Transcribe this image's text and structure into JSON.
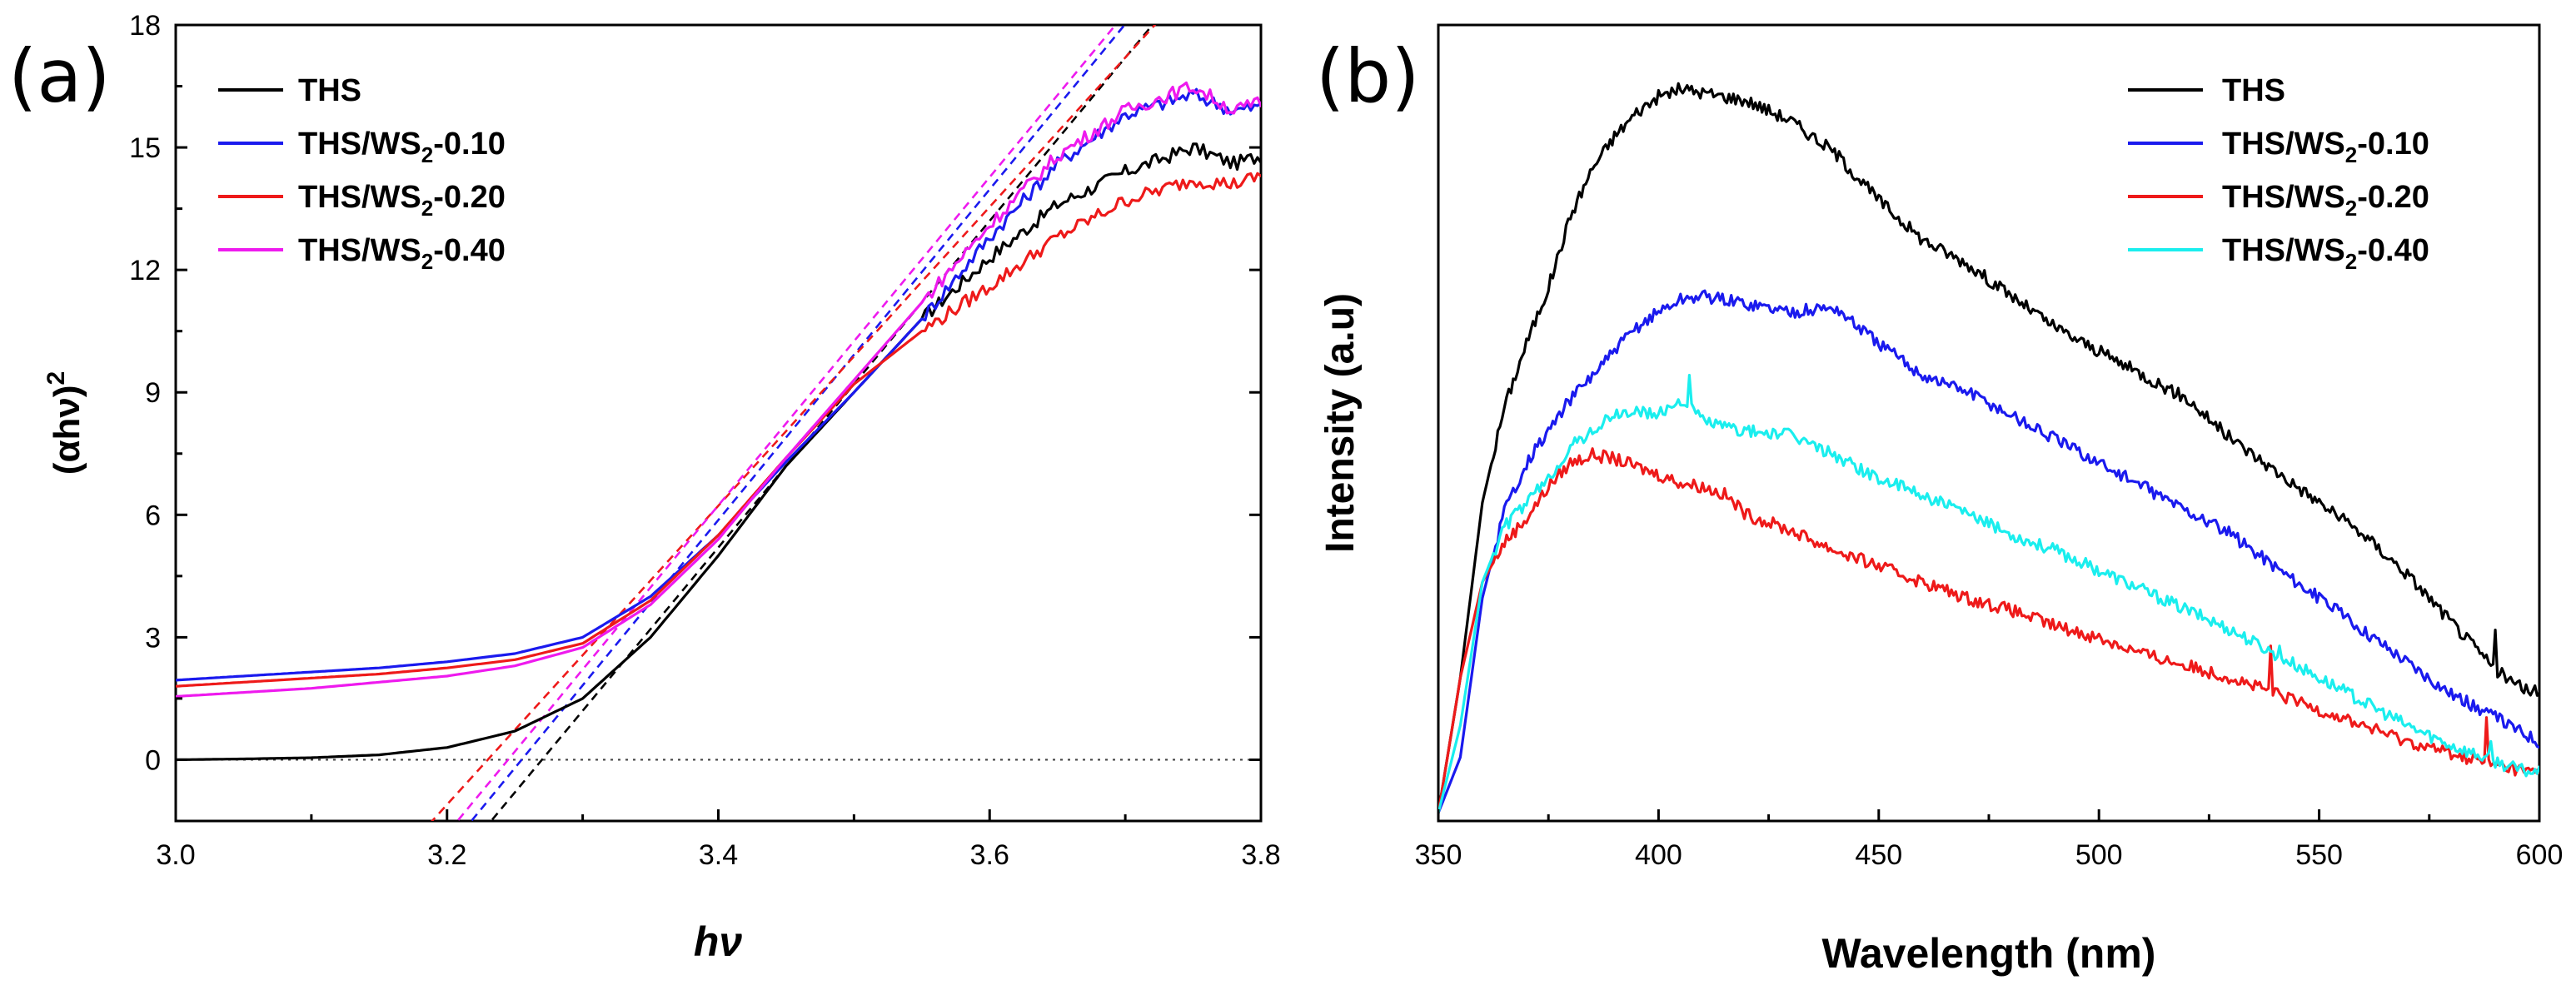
{
  "colors": {
    "THS": "#000000",
    "THS/WS2-0.10": "#1a1aee",
    "THS/WS2-0.20": "#ee1a1a",
    "THS/WS2-0.40_a": "#ee1aee",
    "THS/WS2-0.40_b": "#1aeeee"
  },
  "chart_data": [
    {
      "type": "line",
      "panel_label": "(a)",
      "title": "",
      "xlabel": "hν",
      "ylabel": "(αhν)²",
      "ylabel_main": "(αhν)",
      "ylabel_sup": "2",
      "xlim": [
        3.0,
        3.8
      ],
      "ylim": [
        -1.5,
        18
      ],
      "xticks": [
        "3.0",
        "3.2",
        "3.4",
        "3.6",
        "3.8"
      ],
      "yticks": [
        "0",
        "3",
        "6",
        "9",
        "12",
        "15",
        "18"
      ],
      "legend_position": "top-left",
      "reference_line": {
        "y": 0,
        "style": "dotted"
      },
      "series": [
        {
          "name": "THS",
          "legend_main": "THS",
          "legend_sub": "",
          "legend_tail": "",
          "color": "#000000",
          "x": [
            3.0,
            3.05,
            3.1,
            3.15,
            3.2,
            3.25,
            3.3,
            3.35,
            3.4,
            3.45,
            3.5,
            3.55,
            3.6,
            3.65,
            3.7,
            3.75,
            3.78,
            3.8
          ],
          "y": [
            0.0,
            0.02,
            0.05,
            0.12,
            0.3,
            0.7,
            1.5,
            3.0,
            5.0,
            7.2,
            9.0,
            10.8,
            12.3,
            13.6,
            14.4,
            15.0,
            14.6,
            14.8
          ],
          "fit": {
            "x0": 3.27,
            "slope": 40.0
          }
        },
        {
          "name": "THS/WS2-0.10",
          "legend_main": "THS/WS",
          "legend_sub": "2",
          "legend_tail": "-0.10",
          "color": "#1a1aee",
          "x": [
            3.0,
            3.05,
            3.1,
            3.15,
            3.2,
            3.25,
            3.3,
            3.35,
            3.4,
            3.45,
            3.5,
            3.55,
            3.6,
            3.65,
            3.7,
            3.75,
            3.78,
            3.8
          ],
          "y": [
            1.95,
            2.05,
            2.15,
            2.25,
            2.4,
            2.6,
            3.0,
            4.0,
            5.5,
            7.3,
            9.0,
            10.8,
            12.8,
            14.6,
            15.8,
            16.3,
            15.9,
            16.0
          ],
          "fit": {
            "x0": 3.255,
            "slope": 40.5
          }
        },
        {
          "name": "THS/WS2-0.20",
          "legend_main": "THS/WS",
          "legend_sub": "2",
          "legend_tail": "-0.20",
          "color": "#ee1a1a",
          "x": [
            3.0,
            3.05,
            3.1,
            3.15,
            3.2,
            3.25,
            3.3,
            3.35,
            3.4,
            3.45,
            3.5,
            3.55,
            3.6,
            3.65,
            3.7,
            3.75,
            3.78,
            3.8
          ],
          "y": [
            1.8,
            1.9,
            2.0,
            2.1,
            2.25,
            2.45,
            2.85,
            3.9,
            5.5,
            7.4,
            9.2,
            10.5,
            11.6,
            12.8,
            13.7,
            14.2,
            14.1,
            14.3
          ],
          "fit": {
            "x0": 3.23,
            "slope": 36.6
          }
        },
        {
          "name": "THS/WS2-0.40",
          "legend_main": "THS/WS",
          "legend_sub": "2",
          "legend_tail": "-0.40",
          "color": "#ee1aee",
          "x": [
            3.0,
            3.05,
            3.1,
            3.15,
            3.2,
            3.25,
            3.3,
            3.35,
            3.4,
            3.45,
            3.5,
            3.55,
            3.6,
            3.65,
            3.7,
            3.75,
            3.78,
            3.8
          ],
          "y": [
            1.55,
            1.65,
            1.75,
            1.9,
            2.05,
            2.3,
            2.75,
            3.8,
            5.4,
            7.4,
            9.3,
            11.2,
            13.1,
            14.8,
            15.9,
            16.5,
            15.9,
            16.1
          ],
          "fit": {
            "x0": 3.245,
            "slope": 40.2
          }
        }
      ]
    },
    {
      "type": "line",
      "panel_label": "(b)",
      "title": "",
      "xlabel": "Wavelength (nm)",
      "ylabel": "Intensity (a.u)",
      "xlim": [
        350,
        600
      ],
      "ylim": [
        0,
        100
      ],
      "xticks": [
        "350",
        "400",
        "450",
        "500",
        "550",
        "600"
      ],
      "yticks": [],
      "legend_position": "top-right",
      "series": [
        {
          "name": "THS",
          "legend_main": "THS",
          "legend_sub": "",
          "legend_tail": "",
          "color": "#000000",
          "x": [
            350,
            355,
            360,
            365,
            370,
            375,
            380,
            385,
            390,
            395,
            400,
            405,
            410,
            415,
            420,
            430,
            440,
            450,
            460,
            470,
            480,
            490,
            500,
            510,
            520,
            530,
            540,
            550,
            560,
            570,
            580,
            590,
            595,
            600
          ],
          "y": [
            1,
            18,
            40,
            52,
            60,
            67,
            76,
            82,
            86,
            89,
            91,
            92,
            91.5,
            91,
            90.5,
            88,
            84,
            78,
            73,
            70,
            66,
            62,
            59,
            56,
            53,
            48,
            44,
            40,
            36,
            31,
            25,
            19,
            17,
            16
          ],
          "spikes": [
            [
              590,
              24
            ]
          ]
        },
        {
          "name": "THS/WS2-0.10",
          "legend_main": "THS/WS",
          "legend_sub": "2",
          "legend_tail": "-0.10",
          "color": "#1a1aee",
          "x": [
            350,
            355,
            360,
            365,
            370,
            375,
            380,
            385,
            390,
            395,
            400,
            405,
            410,
            415,
            420,
            430,
            440,
            450,
            460,
            470,
            480,
            490,
            500,
            510,
            520,
            530,
            540,
            550,
            560,
            570,
            580,
            590,
            595,
            600
          ],
          "y": [
            1,
            8,
            28,
            39,
            45,
            49,
            53,
            56,
            59,
            62,
            64,
            65.5,
            66,
            65.5,
            65,
            64,
            64.5,
            60,
            56,
            54,
            51,
            48,
            45,
            42,
            39,
            36,
            32,
            28,
            24,
            20,
            16,
            13,
            11.5,
            10
          ]
        },
        {
          "name": "THS/WS2-0.20",
          "legend_main": "THS/WS",
          "legend_sub": "2",
          "legend_tail": "-0.20",
          "color": "#ee1a1a",
          "x": [
            350,
            355,
            360,
            365,
            370,
            375,
            380,
            385,
            390,
            395,
            400,
            405,
            410,
            415,
            420,
            430,
            440,
            450,
            460,
            470,
            480,
            490,
            500,
            510,
            520,
            530,
            540,
            550,
            560,
            570,
            580,
            590,
            595,
            600
          ],
          "y": [
            1,
            18,
            30,
            35,
            38,
            42,
            45,
            46,
            45.5,
            44.5,
            43.5,
            42.5,
            42,
            41,
            38.5,
            36.5,
            34,
            32,
            30,
            28,
            26.5,
            24.5,
            23,
            21,
            19.5,
            18,
            16,
            14,
            12,
            10,
            8.5,
            7,
            6.5,
            6
          ],
          "spikes": [
            [
              539,
              22
            ],
            [
              588,
              13
            ]
          ]
        },
        {
          "name": "THS/WS2-0.40",
          "legend_main": "THS/WS",
          "legend_sub": "2",
          "legend_tail": "-0.40",
          "color": "#1aeeee",
          "x": [
            350,
            355,
            360,
            365,
            370,
            375,
            380,
            385,
            390,
            395,
            400,
            405,
            410,
            415,
            420,
            430,
            440,
            450,
            460,
            470,
            480,
            490,
            500,
            510,
            520,
            530,
            540,
            550,
            560,
            570,
            580,
            590,
            595,
            600
          ],
          "y": [
            1,
            12,
            30,
            37,
            40,
            43,
            47,
            49,
            51,
            51.5,
            51,
            53,
            50.5,
            49.5,
            49,
            48.5,
            46,
            43,
            41,
            38.5,
            36,
            34,
            31.5,
            29,
            26.5,
            24,
            21,
            18,
            15,
            12,
            9.5,
            7.5,
            6.5,
            6
          ],
          "spikes": [
            [
              407,
              56
            ],
            [
              541,
              22
            ],
            [
              589,
              10
            ]
          ]
        }
      ]
    }
  ]
}
